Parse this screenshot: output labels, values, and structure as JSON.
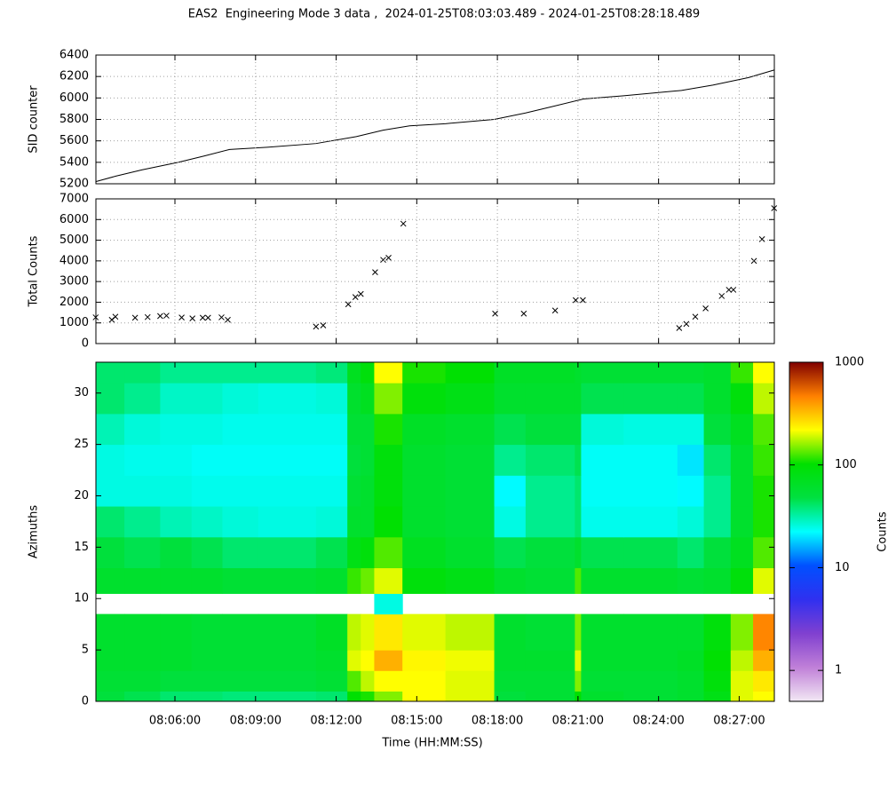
{
  "chart_data": [
    {
      "type": "line",
      "title": "EAS2  Engineering Mode 3 data ,  2024-01-25T08:03:03.489 - 2024-01-25T08:28:18.489",
      "ylabel": "SID counter",
      "color": "#000000",
      "grid": true,
      "x": [
        28983,
        29027,
        29087,
        29167,
        29226,
        29282,
        29366,
        29475,
        29565,
        29625,
        29684,
        29764,
        29873,
        29943,
        30003,
        30072,
        30162,
        30291,
        30361,
        30441,
        30498
      ],
      "y": [
        5220,
        5270,
        5330,
        5400,
        5460,
        5520,
        5540,
        5575,
        5640,
        5700,
        5740,
        5760,
        5800,
        5860,
        5920,
        5990,
        6020,
        6070,
        6120,
        6190,
        6260
      ],
      "ylim": [
        5200,
        6400
      ],
      "yticks": [
        5200,
        5400,
        5600,
        5800,
        6000,
        6200,
        6400
      ]
    },
    {
      "type": "scatter",
      "ylabel": "Total Counts",
      "color": "#000000",
      "grid": true,
      "x": [
        28983,
        29019,
        29027,
        29071,
        29099,
        29127,
        29141,
        29175,
        29199,
        29222,
        29234,
        29264,
        29278,
        29475,
        29491,
        29547,
        29563,
        29575,
        29607,
        29625,
        29637,
        29670,
        29875,
        29939,
        30009,
        30055,
        30071,
        30286,
        30302,
        30322,
        30345,
        30381,
        30397,
        30407,
        30453,
        30471,
        30498
      ],
      "y": [
        1270,
        1150,
        1300,
        1250,
        1280,
        1330,
        1350,
        1260,
        1220,
        1250,
        1250,
        1270,
        1150,
        820,
        880,
        1900,
        2250,
        2400,
        3450,
        4050,
        4150,
        5800,
        1450,
        1450,
        1600,
        2100,
        2100,
        750,
        950,
        1300,
        1700,
        2300,
        2600,
        2600,
        4000,
        5050,
        6550
      ],
      "ylim": [
        0,
        7000
      ],
      "yticks": [
        0,
        1000,
        2000,
        3000,
        4000,
        5000,
        6000,
        7000
      ]
    },
    {
      "type": "heatmap",
      "xlabel": "Time (HH:MM:SS)",
      "ylabel": "Azimuths",
      "xlim": [
        28983.489,
        30498.489
      ],
      "xticks": [
        {
          "value": 29160,
          "label": "08:06:00"
        },
        {
          "value": 29340,
          "label": "08:09:00"
        },
        {
          "value": 29520,
          "label": "08:12:00"
        },
        {
          "value": 29700,
          "label": "08:15:00"
        },
        {
          "value": 29880,
          "label": "08:18:00"
        },
        {
          "value": 30060,
          "label": "08:21:00"
        },
        {
          "value": 30240,
          "label": "08:24:00"
        },
        {
          "value": 30420,
          "label": "08:27:00"
        }
      ],
      "ylim": [
        0,
        33
      ],
      "yticks": [
        0,
        5,
        10,
        15,
        20,
        25,
        30
      ],
      "xbins": [
        28983.489,
        29047,
        29127,
        29197,
        29266,
        29346,
        29475,
        29545,
        29575,
        29605,
        29668,
        29764,
        29873,
        29943,
        30053,
        30067,
        30162,
        30282,
        30341,
        30401,
        30451,
        30498.489
      ],
      "ybins": [
        0,
        1,
        3,
        5,
        8.5,
        10.5,
        13,
        16,
        19,
        22,
        25,
        28,
        31,
        33
      ],
      "z": [
        [
          50,
          45,
          40,
          40,
          38,
          38,
          40,
          100,
          110,
          150,
          220,
          200,
          50,
          55,
          100,
          60,
          55,
          60,
          80,
          200,
          220
        ],
        [
          55,
          55,
          50,
          50,
          50,
          50,
          55,
          130,
          180,
          220,
          220,
          200,
          55,
          55,
          150,
          55,
          55,
          60,
          90,
          200,
          250
        ],
        [
          60,
          60,
          60,
          55,
          55,
          55,
          60,
          200,
          220,
          350,
          230,
          210,
          60,
          60,
          200,
          60,
          60,
          65,
          100,
          180,
          350
        ],
        [
          60,
          60,
          60,
          55,
          55,
          55,
          65,
          180,
          200,
          250,
          200,
          180,
          60,
          55,
          150,
          60,
          60,
          60,
          90,
          150,
          450
        ],
        [
          null,
          null,
          null,
          null,
          null,
          null,
          null,
          null,
          null,
          25,
          null,
          null,
          null,
          null,
          null,
          null,
          null,
          null,
          null,
          null,
          null
        ],
        [
          60,
          60,
          60,
          60,
          55,
          55,
          60,
          120,
          140,
          200,
          90,
          80,
          60,
          55,
          130,
          60,
          60,
          55,
          60,
          90,
          200
        ],
        [
          50,
          45,
          50,
          45,
          40,
          40,
          45,
          80,
          90,
          130,
          70,
          60,
          45,
          50,
          60,
          45,
          45,
          40,
          50,
          70,
          130
        ],
        [
          40,
          35,
          30,
          28,
          26,
          25,
          26,
          60,
          60,
          100,
          60,
          55,
          25,
          35,
          40,
          24,
          24,
          26,
          35,
          60,
          110
        ],
        [
          25,
          25,
          25,
          24,
          24,
          24,
          24,
          55,
          60,
          90,
          60,
          55,
          22,
          35,
          40,
          23,
          23,
          22,
          35,
          60,
          110
        ],
        [
          25,
          24,
          24,
          23,
          23,
          23,
          23,
          50,
          55,
          90,
          60,
          55,
          35,
          40,
          45,
          23,
          23,
          20,
          40,
          60,
          120
        ],
        [
          30,
          26,
          25,
          25,
          24,
          24,
          24,
          55,
          55,
          110,
          65,
          60,
          45,
          50,
          50,
          26,
          25,
          25,
          50,
          70,
          130
        ],
        [
          40,
          35,
          28,
          28,
          26,
          25,
          26,
          60,
          70,
          150,
          90,
          80,
          60,
          60,
          60,
          45,
          45,
          45,
          60,
          90,
          180
        ],
        [
          40,
          40,
          35,
          35,
          35,
          35,
          38,
          70,
          90,
          220,
          110,
          100,
          65,
          65,
          60,
          55,
          55,
          55,
          60,
          120,
          220
        ]
      ],
      "zlim": [
        0.5,
        1000
      ],
      "zticks": [
        1,
        10,
        100,
        1000
      ],
      "zscale": "log",
      "zlabel": "Counts",
      "colorscale": [
        "#f2e8f4",
        "#c080d8",
        "#8040d0",
        "#3030f0",
        "#0050ff",
        "#00ffff",
        "#00e040",
        "#00e000",
        "#ffff00",
        "#ff8000",
        "#800000"
      ]
    }
  ]
}
